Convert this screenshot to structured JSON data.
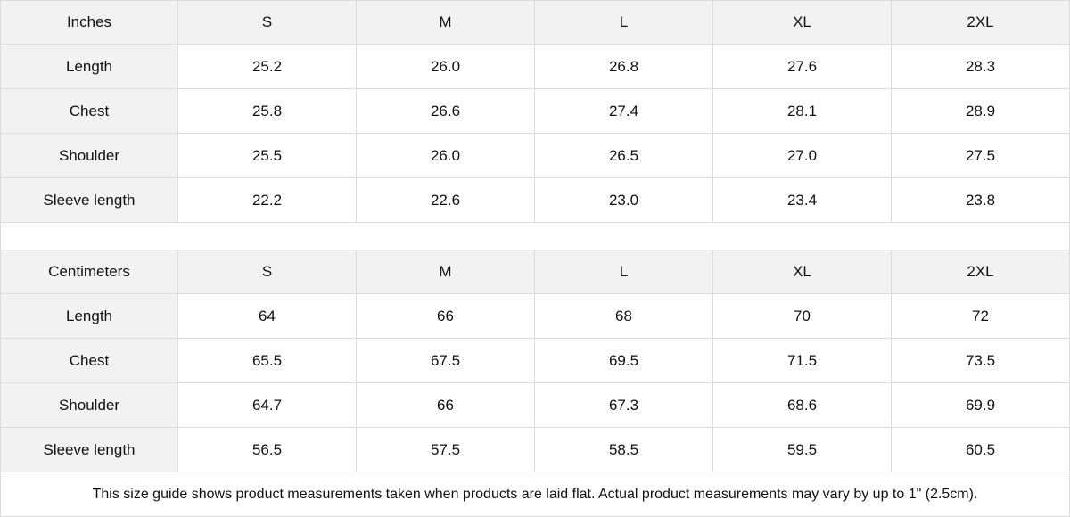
{
  "tables": [
    {
      "unit_label": "Inches",
      "sizes": [
        "S",
        "M",
        "L",
        "XL",
        "2XL"
      ],
      "rows": [
        {
          "label": "Length",
          "values": [
            "25.2",
            "26.0",
            "26.8",
            "27.6",
            "28.3"
          ]
        },
        {
          "label": "Chest",
          "values": [
            "25.8",
            "26.6",
            "27.4",
            "28.1",
            "28.9"
          ]
        },
        {
          "label": "Shoulder",
          "values": [
            "25.5",
            "26.0",
            "26.5",
            "27.0",
            "27.5"
          ]
        },
        {
          "label": "Sleeve length",
          "values": [
            "22.2",
            "22.6",
            "23.0",
            "23.4",
            "23.8"
          ]
        }
      ]
    },
    {
      "unit_label": "Centimeters",
      "sizes": [
        "S",
        "M",
        "L",
        "XL",
        "2XL"
      ],
      "rows": [
        {
          "label": "Length",
          "values": [
            "64",
            "66",
            "68",
            "70",
            "72"
          ]
        },
        {
          "label": "Chest",
          "values": [
            "65.5",
            "67.5",
            "69.5",
            "71.5",
            "73.5"
          ]
        },
        {
          "label": "Shoulder",
          "values": [
            "64.7",
            "66",
            "67.3",
            "68.6",
            "69.9"
          ]
        },
        {
          "label": "Sleeve length",
          "values": [
            "56.5",
            "57.5",
            "58.5",
            "59.5",
            "60.5"
          ]
        }
      ]
    }
  ],
  "note": "This size guide shows product measurements taken when products are laid flat.  Actual product measurements may vary by up to 1\" (2.5cm)."
}
